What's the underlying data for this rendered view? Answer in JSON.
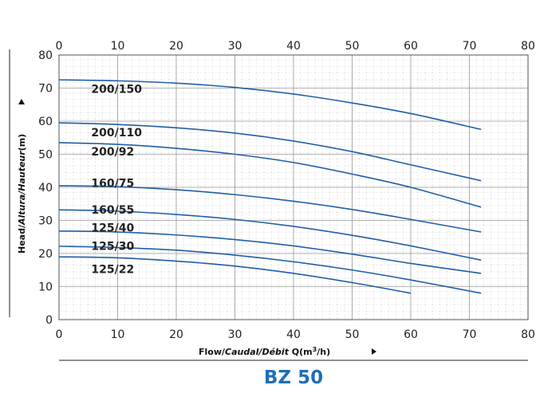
{
  "chart_data": {
    "type": "line",
    "title": "BZ 50",
    "xlabel_parts": [
      "Flow/",
      "Caudal",
      "/",
      "Débit",
      " Q(m",
      "3",
      "/h)"
    ],
    "ylabel_parts": [
      "Head/",
      "Altura",
      "/",
      "Hauteur",
      "(m)"
    ],
    "xlim": [
      0,
      80
    ],
    "ylim": [
      0,
      80
    ],
    "x_ticks": [
      0,
      10,
      20,
      30,
      40,
      50,
      60,
      70,
      80
    ],
    "y_ticks": [
      0,
      10,
      20,
      30,
      40,
      50,
      60,
      70,
      80
    ],
    "grid": true,
    "line_color": "#1f5fa8",
    "series": [
      {
        "name": "200/150",
        "label_pos": [
          5.5,
          69.8
        ],
        "x": [
          0,
          10,
          20,
          30,
          40,
          50,
          60,
          72
        ],
        "y": [
          72.5,
          72.2,
          71.5,
          70.2,
          68.2,
          65.5,
          62.3,
          57.5
        ]
      },
      {
        "name": "200/110",
        "label_pos": [
          5.5,
          56.6
        ],
        "x": [
          0,
          10,
          20,
          30,
          40,
          50,
          60,
          72
        ],
        "y": [
          59.5,
          59.0,
          58.0,
          56.4,
          54.0,
          50.8,
          46.8,
          42.0
        ]
      },
      {
        "name": "200/92",
        "label_pos": [
          5.5,
          50.8
        ],
        "x": [
          0,
          10,
          20,
          30,
          40,
          50,
          60,
          72
        ],
        "y": [
          53.5,
          53.0,
          51.8,
          50.0,
          47.5,
          44.0,
          40.0,
          34.0
        ]
      },
      {
        "name": "160/75",
        "label_pos": [
          5.5,
          41.3
        ],
        "x": [
          0,
          10,
          20,
          30,
          40,
          50,
          60,
          72
        ],
        "y": [
          40.5,
          40.2,
          39.3,
          37.8,
          35.8,
          33.3,
          30.3,
          26.5
        ]
      },
      {
        "name": "160/55",
        "label_pos": [
          5.5,
          33.2
        ],
        "x": [
          0,
          10,
          20,
          30,
          40,
          50,
          60,
          72
        ],
        "y": [
          33.2,
          32.8,
          31.8,
          30.3,
          28.2,
          25.5,
          22.3,
          18.0
        ]
      },
      {
        "name": "125/40",
        "label_pos": [
          5.5,
          27.8
        ],
        "x": [
          0,
          10,
          20,
          30,
          40,
          50,
          60,
          72
        ],
        "y": [
          26.8,
          26.5,
          25.6,
          24.2,
          22.3,
          19.8,
          17.0,
          14.0
        ]
      },
      {
        "name": "125/30",
        "label_pos": [
          5.5,
          22.3
        ],
        "x": [
          0,
          10,
          20,
          30,
          40,
          50,
          60,
          72
        ],
        "y": [
          22.2,
          21.8,
          21.0,
          19.5,
          17.5,
          15.0,
          12.0,
          8.0
        ]
      },
      {
        "name": "125/22",
        "label_pos": [
          5.5,
          15.3
        ],
        "x": [
          0,
          10,
          20,
          30,
          40,
          50,
          60
        ],
        "y": [
          19.0,
          18.7,
          17.7,
          16.2,
          14.0,
          11.2,
          8.0
        ]
      }
    ]
  }
}
